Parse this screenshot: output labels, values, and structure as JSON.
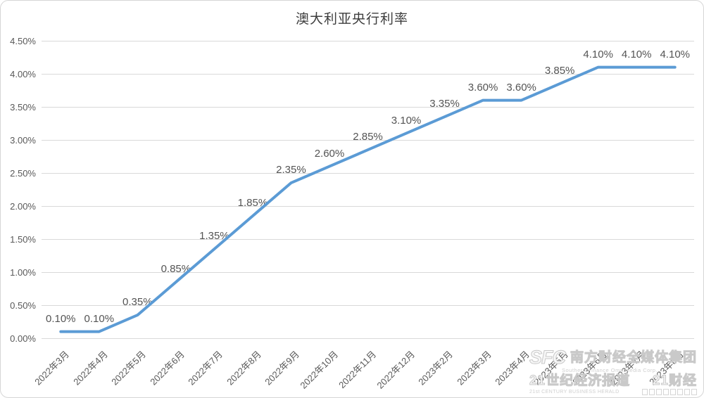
{
  "title": "澳大利亚央行利率",
  "watermark": {
    "logo": "SFC",
    "line1": "南方财经全媒体集团",
    "line1_en": "Southern Finance Omnimedia Corp.",
    "line2a": "21世纪经济报道",
    "line2b": "21财经",
    "line2_en": "21st CENTURY BUSINESS HERALD"
  },
  "chart_data": {
    "type": "line",
    "title": "澳大利亚央行利率",
    "categories": [
      "2022年3月",
      "2022年4月",
      "2022年5月",
      "2022年6月",
      "2022年7月",
      "2022年8月",
      "2022年9月",
      "2022年10月",
      "2022年11月",
      "2022年12月",
      "2023年2月",
      "2023年3月",
      "2023年4月",
      "2023年5月",
      "2023年6月",
      "2023年7月",
      "2023年8月"
    ],
    "values": [
      0.1,
      0.1,
      0.35,
      0.85,
      1.35,
      1.85,
      2.35,
      2.6,
      2.85,
      3.1,
      3.35,
      3.6,
      3.6,
      3.85,
      4.1,
      4.1,
      4.1
    ],
    "data_labels": [
      "0.10%",
      "0.10%",
      "0.35%",
      "0.85%",
      "1.35%",
      "1.85%",
      "2.35%",
      "2.60%",
      "2.85%",
      "3.10%",
      "3.35%",
      "3.60%",
      "3.60%",
      "3.85%",
      "4.10%",
      "4.10%",
      "4.10%"
    ],
    "y_ticks": [
      "4.50%",
      "4.00%",
      "3.50%",
      "3.00%",
      "2.50%",
      "2.00%",
      "1.50%",
      "1.00%",
      "0.50%",
      "0.00%"
    ],
    "ylim": [
      0,
      4.5
    ],
    "xlabel": "",
    "ylabel": "",
    "grid": true,
    "legend": "none",
    "line_color": "#5B9BD5",
    "grid_color": "#d9d9d9",
    "axis_text_color": "#595959"
  }
}
